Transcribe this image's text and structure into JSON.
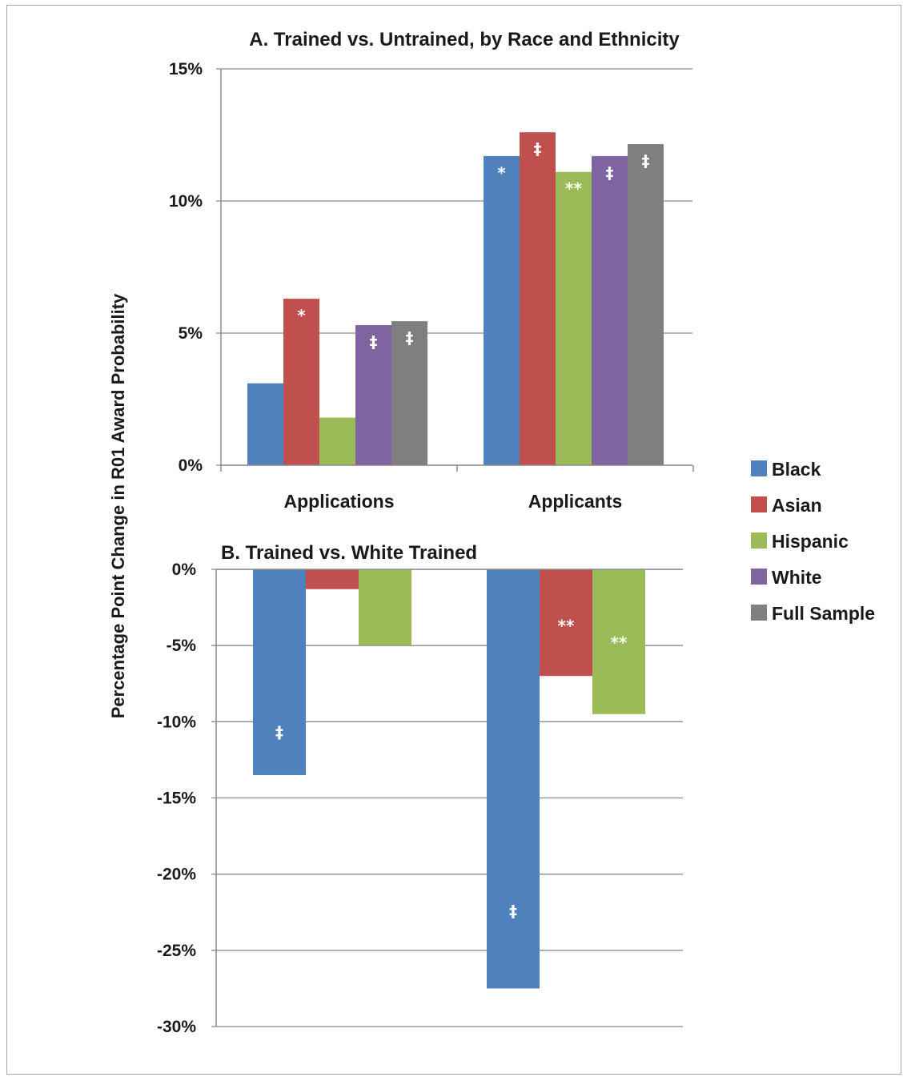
{
  "chart_data": [
    {
      "type": "bar",
      "title": "A. Trained vs. Untrained, by Race and Ethnicity",
      "ylabel": "Percentage Point Change in R01 Award Probability",
      "categories": [
        "Applications",
        "Applicants"
      ],
      "ylim": [
        0,
        15
      ],
      "yticks": [
        "15%",
        "10%",
        "5%",
        "0%"
      ],
      "grid": true,
      "series": [
        {
          "name": "Black",
          "color": "#4f81bd",
          "values": [
            3.1,
            11.7
          ],
          "marks": [
            "",
            "*"
          ]
        },
        {
          "name": "Asian",
          "color": "#c0504d",
          "values": [
            6.3,
            12.6
          ],
          "marks": [
            "*",
            "‡"
          ]
        },
        {
          "name": "Hispanic",
          "color": "#9bbb59",
          "values": [
            1.8,
            11.1
          ],
          "marks": [
            "",
            "**"
          ]
        },
        {
          "name": "White",
          "color": "#8064a2",
          "values": [
            5.3,
            11.7
          ],
          "marks": [
            "‡",
            "‡"
          ]
        },
        {
          "name": "Full Sample",
          "color": "#7f7f7f",
          "values": [
            5.45,
            12.15
          ],
          "marks": [
            "‡",
            "‡"
          ]
        }
      ]
    },
    {
      "type": "bar",
      "title": "B. Trained vs. White Trained",
      "ylabel": "Percentage Point Change in R01 Award Probability",
      "categories": [
        "Applications",
        "Applicants"
      ],
      "ylim": [
        -30,
        0
      ],
      "yticks": [
        "0%",
        "-5%",
        "-10%",
        "-15%",
        "-20%",
        "-25%",
        "-30%"
      ],
      "grid": true,
      "series": [
        {
          "name": "Black",
          "color": "#4f81bd",
          "values": [
            -13.5,
            -27.5
          ],
          "marks": [
            "‡",
            "‡"
          ]
        },
        {
          "name": "Asian",
          "color": "#c0504d",
          "values": [
            -1.3,
            -7.0
          ],
          "marks": [
            "",
            "**"
          ]
        },
        {
          "name": "Hispanic",
          "color": "#9bbb59",
          "values": [
            -5.0,
            -9.5
          ],
          "marks": [
            "",
            "**"
          ]
        }
      ]
    }
  ],
  "legend": {
    "position": "right",
    "items": [
      {
        "label": "Black",
        "color": "#4f81bd"
      },
      {
        "label": "Asian",
        "color": "#c0504d"
      },
      {
        "label": "Hispanic",
        "color": "#9bbb59"
      },
      {
        "label": "White",
        "color": "#8064a2"
      },
      {
        "label": "Full Sample",
        "color": "#7f7f7f"
      }
    ]
  }
}
